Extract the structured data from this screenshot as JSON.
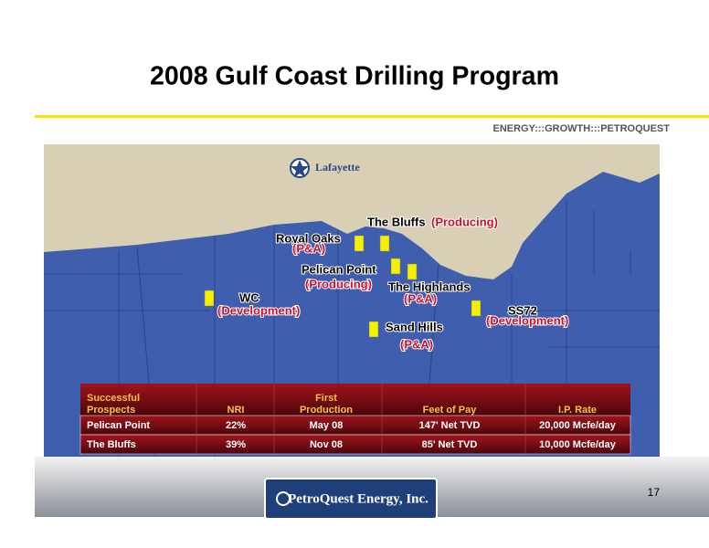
{
  "header": {
    "title": "2008 Gulf Coast Drilling Program",
    "tagline": "ENERGY:::GROWTH:::PETROQUEST"
  },
  "map": {
    "city": "Lafayette",
    "prospects": [
      {
        "name": "The Bluffs",
        "status": "(Producing)"
      },
      {
        "name": "Royal Oaks",
        "status": "(P&A)"
      },
      {
        "name": "Pelican Point",
        "status": "(Producing)"
      },
      {
        "name": "The Highlands",
        "status": "(P&A)"
      },
      {
        "name": "WC",
        "status": "(Development)"
      },
      {
        "name": "SS72",
        "status": "(Development)"
      },
      {
        "name": "Sand Hills",
        "status": "(P&A)"
      }
    ]
  },
  "table": {
    "headers": [
      [
        "Successful",
        "Prospects"
      ],
      [
        "NRI"
      ],
      [
        "First",
        "Production"
      ],
      [
        "Feet of Pay"
      ],
      [
        "I.P. Rate"
      ]
    ],
    "rows": [
      [
        "Pelican Point",
        "22%",
        "May 08",
        "147' Net TVD",
        "20,000 Mcfe/day"
      ],
      [
        "The Bluffs",
        "39%",
        "Nov 08",
        "85' Net TVD",
        "10,000 Mcfe/day"
      ]
    ]
  },
  "footer": {
    "page_number": "17",
    "logo": "PetroQuest Energy, Inc."
  }
}
